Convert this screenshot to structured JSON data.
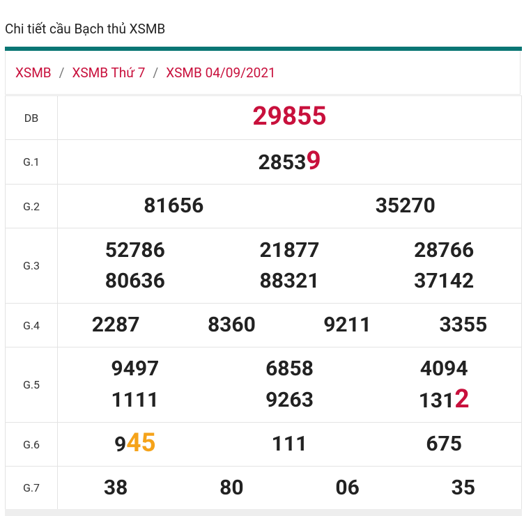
{
  "header": {
    "title": "Chi tiết cầu Bạch thủ XSMB"
  },
  "breadcrumb": {
    "items": [
      "XSMB",
      "XSMB Thứ 7",
      "XSMB 04/09/2021"
    ],
    "separator": "/"
  },
  "table": {
    "rows": [
      {
        "label": "DB",
        "numbers": [
          {
            "highlight": "29855",
            "highlight_color": "#c8103c"
          }
        ]
      },
      {
        "label": "G.1",
        "numbers": [
          {
            "plain": "2853",
            "highlight": "9",
            "highlight_color": "#c8103c"
          }
        ]
      },
      {
        "label": "G.2",
        "numbers": [
          {
            "plain": "81656"
          },
          {
            "plain": "35270"
          }
        ]
      },
      {
        "label": "G.3",
        "numbers": [
          {
            "plain": "52786"
          },
          {
            "plain": "21877"
          },
          {
            "plain": "28766"
          },
          {
            "plain": "80636"
          },
          {
            "plain": "88321"
          },
          {
            "plain": "37142"
          }
        ]
      },
      {
        "label": "G.4",
        "numbers": [
          {
            "plain": "2287"
          },
          {
            "plain": "8360"
          },
          {
            "plain": "9211"
          },
          {
            "plain": "3355"
          }
        ]
      },
      {
        "label": "G.5",
        "numbers": [
          {
            "plain": "9497"
          },
          {
            "plain": "6858"
          },
          {
            "plain": "4094"
          },
          {
            "plain": "1111"
          },
          {
            "plain": "9263"
          },
          {
            "plain": "131",
            "highlight": "2",
            "highlight_color": "#c8103c"
          }
        ]
      },
      {
        "label": "G.6",
        "numbers": [
          {
            "plain": "9",
            "highlight": "45",
            "highlight_color": "#f5a31a"
          },
          {
            "plain": "111"
          },
          {
            "plain": "675"
          }
        ]
      },
      {
        "label": "G.7",
        "numbers": [
          {
            "plain": "38"
          },
          {
            "plain": "80"
          },
          {
            "plain": "06"
          },
          {
            "plain": "35"
          }
        ]
      }
    ]
  }
}
